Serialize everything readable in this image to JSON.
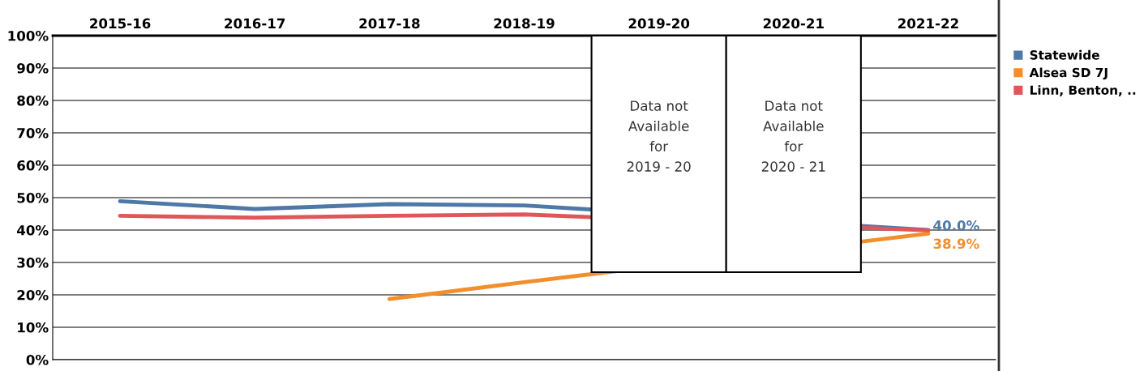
{
  "chart_data": {
    "type": "line",
    "categories": [
      "2015-16",
      "2016-17",
      "2017-18",
      "2018-19",
      "2019-20",
      "2020-21",
      "2021-22"
    ],
    "series": [
      {
        "name": "Statewide",
        "color": "#4e79a7",
        "values": [
          48.9,
          46.5,
          48.0,
          47.6,
          null,
          null,
          40.0
        ],
        "value_labels": [
          null,
          null,
          null,
          null,
          null,
          null,
          "40.0%"
        ]
      },
      {
        "name": "Alsea SD 7J",
        "color": "#f28e2b",
        "values": [
          null,
          null,
          18.7,
          23.9,
          null,
          null,
          38.9
        ],
        "value_labels": [
          null,
          null,
          null,
          null,
          null,
          null,
          "38.9%"
        ]
      },
      {
        "name": "Linn, Benton, ..",
        "color": "#e15759",
        "values": [
          44.4,
          43.8,
          44.4,
          44.8,
          null,
          null,
          39.9
        ]
      }
    ],
    "ylim": [
      0,
      100
    ],
    "yticks": [
      {
        "value": 0,
        "label": "0%"
      },
      {
        "value": 10,
        "label": "10%"
      },
      {
        "value": 20,
        "label": "20%"
      },
      {
        "value": 30,
        "label": "30%"
      },
      {
        "value": 40,
        "label": "40%"
      },
      {
        "value": 50,
        "label": "50%"
      },
      {
        "value": 60,
        "label": "60%"
      },
      {
        "value": 70,
        "label": "70%"
      },
      {
        "value": 80,
        "label": "80%"
      },
      {
        "value": 90,
        "label": "90%"
      },
      {
        "value": 100,
        "label": "100%"
      }
    ],
    "grid": "y",
    "legend": "right",
    "annotations": [
      "Data not\nAvailable\nfor\n2019 - 20",
      "Data not\nAvailable\nfor\n2020 - 21"
    ]
  }
}
